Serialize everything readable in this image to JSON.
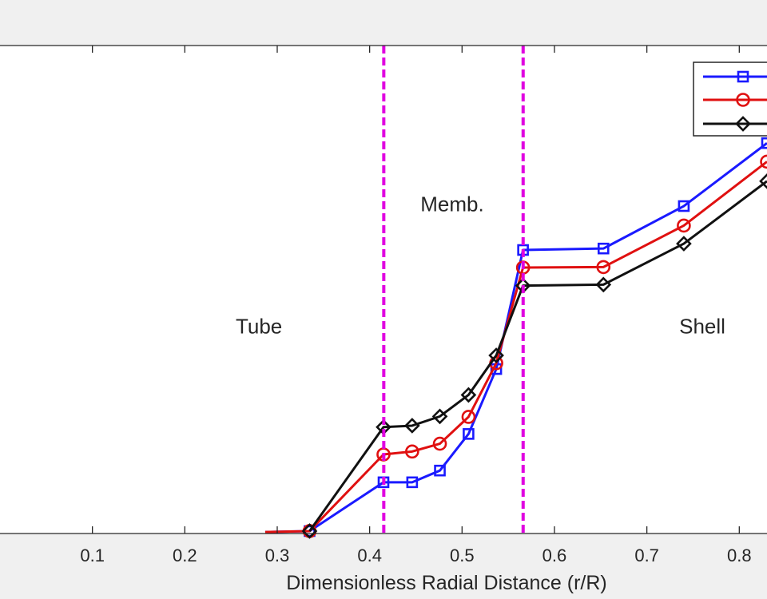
{
  "chart_data": {
    "type": "line",
    "title": "",
    "xlabel": "Dimensionless Radial Distance (r/R)",
    "ylabel": "",
    "xlim": [
      0.0,
      0.83
    ],
    "xticks": [
      0.1,
      0.2,
      0.3,
      0.4,
      0.5,
      0.6,
      0.7,
      0.8
    ],
    "xtick_labels": [
      "0.1",
      "0.2",
      "0.3",
      "0.4",
      "0.5",
      "0.6",
      "0.7",
      "0.8"
    ],
    "grid": false,
    "legend": {
      "placement": "top-right"
    },
    "regions": [
      {
        "label": "Tube",
        "x": 0.255,
        "y_frac": 0.59
      },
      {
        "label": "Memb.",
        "x": 0.455,
        "y_frac": 0.34
      },
      {
        "label": "Shell",
        "x": 0.735,
        "y_frac": 0.59
      }
    ],
    "vlines": [
      {
        "x": 0.4153,
        "color": "#e000e0",
        "style": "dashed"
      },
      {
        "x": 0.5661,
        "color": "#e000e0",
        "style": "dashed"
      }
    ],
    "series": [
      {
        "color": "#1a1aff",
        "marker": "square",
        "x": [
          0.287,
          0.335,
          0.415,
          0.446,
          0.476,
          0.507,
          0.537,
          0.566,
          0.653,
          0.74,
          0.83
        ],
        "y": [
          0.003,
          0.005,
          0.105,
          0.105,
          0.129,
          0.204,
          0.337,
          0.581,
          0.584,
          0.671,
          0.8
        ],
        "draw_marker_at": [
          false,
          true,
          true,
          true,
          true,
          true,
          true,
          true,
          true,
          true,
          true
        ]
      },
      {
        "color": "#e01010",
        "marker": "circle",
        "x": [
          0.287,
          0.335,
          0.415,
          0.446,
          0.476,
          0.507,
          0.537,
          0.566,
          0.653,
          0.74,
          0.83
        ],
        "y": [
          0.003,
          0.005,
          0.162,
          0.168,
          0.184,
          0.239,
          0.349,
          0.545,
          0.546,
          0.631,
          0.762
        ],
        "draw_marker_at": [
          false,
          true,
          true,
          true,
          true,
          true,
          true,
          true,
          true,
          true,
          true
        ]
      },
      {
        "color": "#111111",
        "marker": "diamond",
        "x": [
          0.335,
          0.415,
          0.446,
          0.476,
          0.507,
          0.537,
          0.566,
          0.653,
          0.74,
          0.83
        ],
        "y": [
          0.005,
          0.218,
          0.221,
          0.24,
          0.284,
          0.365,
          0.508,
          0.51,
          0.594,
          0.722
        ],
        "draw_marker_at": [
          true,
          true,
          true,
          true,
          true,
          true,
          true,
          true,
          true,
          true
        ]
      }
    ]
  }
}
